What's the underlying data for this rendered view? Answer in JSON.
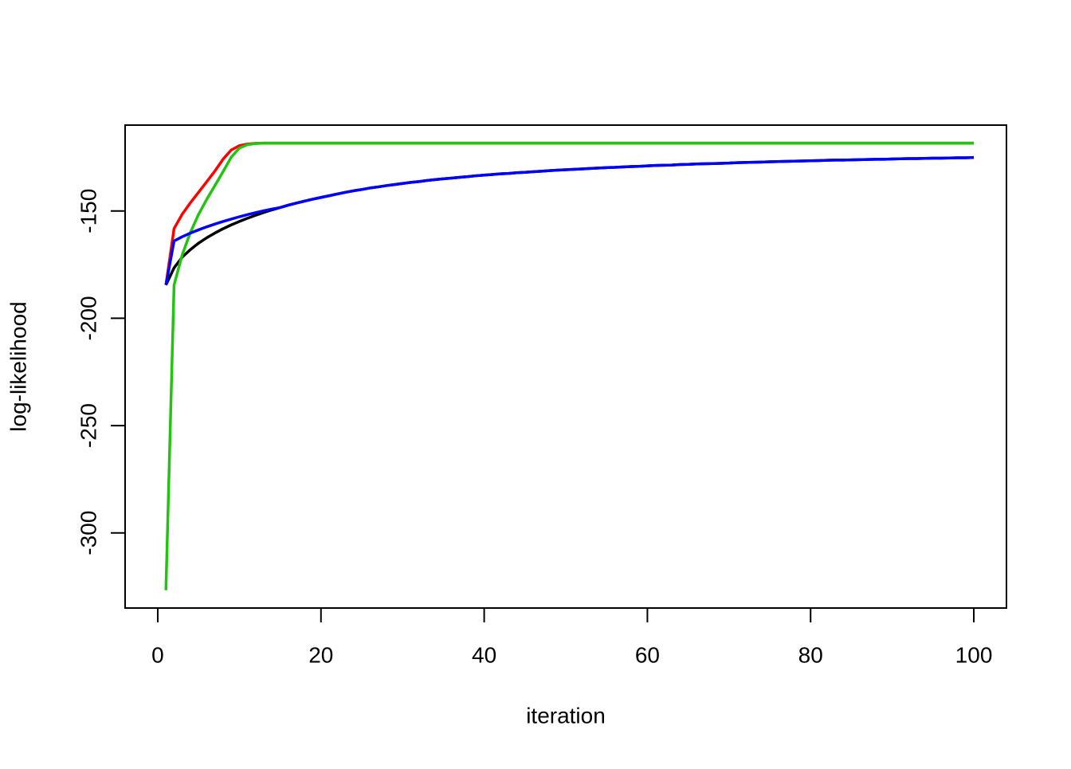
{
  "chart_data": {
    "type": "line",
    "x_label": "iteration",
    "y_label": "log-likelihood",
    "x": [
      1,
      2,
      3,
      4,
      5,
      6,
      7,
      8,
      9,
      10,
      11,
      12,
      13,
      14,
      15,
      16,
      17,
      18,
      19,
      20,
      21,
      22,
      23,
      24,
      25,
      26,
      27,
      28,
      29,
      30,
      31,
      32,
      33,
      34,
      35,
      36,
      37,
      38,
      39,
      40,
      41,
      42,
      43,
      44,
      45,
      46,
      47,
      48,
      49,
      50,
      51,
      52,
      53,
      54,
      55,
      56,
      57,
      58,
      59,
      60,
      61,
      62,
      63,
      64,
      65,
      66,
      67,
      68,
      69,
      70,
      71,
      72,
      73,
      74,
      75,
      76,
      77,
      78,
      79,
      80,
      81,
      82,
      83,
      84,
      85,
      86,
      87,
      88,
      89,
      90,
      91,
      92,
      93,
      94,
      95,
      96,
      97,
      98,
      99,
      100
    ],
    "series": [
      {
        "color": "#000000",
        "values": [
          -184.5,
          -176.5,
          -171.5,
          -168.0,
          -165.0,
          -162.5,
          -160.3,
          -158.3,
          -156.5,
          -154.9,
          -153.4,
          -152.0,
          -150.7,
          -149.5,
          -148.4,
          -147.3,
          -146.3,
          -145.4,
          -144.5,
          -143.7,
          -142.9,
          -142.1,
          -141.3,
          -140.6,
          -140.0,
          -139.3,
          -138.8,
          -138.2,
          -137.7,
          -137.2,
          -136.7,
          -136.3,
          -135.8,
          -135.4,
          -135.0,
          -134.7,
          -134.3,
          -134.0,
          -133.6,
          -133.3,
          -133.0,
          -132.7,
          -132.5,
          -132.2,
          -132.0,
          -131.7,
          -131.5,
          -131.2,
          -131.0,
          -130.8,
          -130.6,
          -130.4,
          -130.2,
          -130.0,
          -129.8,
          -129.7,
          -129.5,
          -129.3,
          -129.2,
          -129.0,
          -128.8,
          -128.7,
          -128.6,
          -128.4,
          -128.3,
          -128.1,
          -128.0,
          -127.9,
          -127.8,
          -127.7,
          -127.5,
          -127.4,
          -127.3,
          -127.2,
          -127.1,
          -127.0,
          -126.9,
          -126.8,
          -126.7,
          -126.6,
          -126.5,
          -126.4,
          -126.3,
          -126.3,
          -126.2,
          -126.1,
          -126.0,
          -125.9,
          -125.9,
          -125.8,
          -125.7,
          -125.6,
          -125.6,
          -125.5,
          -125.4,
          -125.4,
          -125.3,
          -125.2,
          -125.2,
          -125.1
        ]
      },
      {
        "color": "#ff0000",
        "values": [
          -184.5,
          -158.2,
          -151.5,
          -146.2,
          -141.3,
          -136.4,
          -131.4,
          -125.9,
          -121.6,
          -119.6,
          -118.8,
          -118.5,
          -118.4,
          -118.4,
          -118.4,
          -118.4,
          -118.4,
          -118.4,
          -118.4,
          -118.4,
          -118.4,
          -118.4,
          -118.4,
          -118.4,
          -118.4,
          -118.4,
          -118.4,
          -118.4,
          -118.4,
          -118.4,
          -118.4,
          -118.4,
          -118.4,
          -118.4,
          -118.4,
          -118.4,
          -118.4,
          -118.4,
          -118.4,
          -118.4,
          -118.4,
          -118.4,
          -118.4,
          -118.4,
          -118.4,
          -118.4,
          -118.4,
          -118.4,
          -118.4,
          -118.4,
          -118.4,
          -118.4,
          -118.4,
          -118.4,
          -118.4,
          -118.4,
          -118.4,
          -118.4,
          -118.4,
          -118.4,
          -118.4,
          -118.4,
          -118.4,
          -118.4,
          -118.4,
          -118.4,
          -118.4,
          -118.4,
          -118.4,
          -118.4,
          -118.4,
          -118.4,
          -118.4,
          -118.4,
          -118.4,
          -118.4,
          -118.4,
          -118.4,
          -118.4,
          -118.4,
          -118.4,
          -118.4,
          -118.4,
          -118.4,
          -118.4,
          -118.4,
          -118.4,
          -118.4,
          -118.4,
          -118.4,
          -118.4,
          -118.4,
          -118.4,
          -118.4,
          -118.4,
          -118.4,
          -118.4,
          -118.4,
          -118.4,
          -118.4
        ]
      },
      {
        "color": "#22c411",
        "values": [
          -326.7,
          -184.5,
          -170.4,
          -160.0,
          -151.6,
          -144.6,
          -138.2,
          -131.7,
          -125.0,
          -120.7,
          -119.1,
          -118.6,
          -118.4,
          -118.4,
          -118.4,
          -118.4,
          -118.4,
          -118.4,
          -118.4,
          -118.4,
          -118.4,
          -118.4,
          -118.4,
          -118.4,
          -118.4,
          -118.4,
          -118.4,
          -118.4,
          -118.4,
          -118.4,
          -118.4,
          -118.4,
          -118.4,
          -118.4,
          -118.4,
          -118.4,
          -118.4,
          -118.4,
          -118.4,
          -118.4,
          -118.4,
          -118.4,
          -118.4,
          -118.4,
          -118.4,
          -118.4,
          -118.4,
          -118.4,
          -118.4,
          -118.4,
          -118.4,
          -118.4,
          -118.4,
          -118.4,
          -118.4,
          -118.4,
          -118.4,
          -118.4,
          -118.4,
          -118.4,
          -118.4,
          -118.4,
          -118.4,
          -118.4,
          -118.4,
          -118.4,
          -118.4,
          -118.4,
          -118.4,
          -118.4,
          -118.4,
          -118.4,
          -118.4,
          -118.4,
          -118.4,
          -118.4,
          -118.4,
          -118.4,
          -118.4,
          -118.4,
          -118.4,
          -118.4,
          -118.4,
          -118.4,
          -118.4,
          -118.4,
          -118.4,
          -118.4,
          -118.4,
          -118.4,
          -118.4,
          -118.4,
          -118.4,
          -118.4,
          -118.4,
          -118.4,
          -118.4,
          -118.4,
          -118.4,
          -118.4
        ]
      },
      {
        "color": "#0000ff",
        "values": [
          -184.5,
          -164.0,
          -162.0,
          -160.3,
          -158.8,
          -157.4,
          -156.1,
          -154.9,
          -153.8,
          -152.7,
          -151.7,
          -150.8,
          -149.9,
          -149.1,
          -148.4,
          -147.3,
          -146.3,
          -145.4,
          -144.5,
          -143.7,
          -142.9,
          -142.1,
          -141.3,
          -140.6,
          -140.0,
          -139.3,
          -138.8,
          -138.2,
          -137.7,
          -137.2,
          -136.7,
          -136.3,
          -135.8,
          -135.4,
          -135.0,
          -134.7,
          -134.3,
          -134.0,
          -133.6,
          -133.3,
          -133.0,
          -132.7,
          -132.5,
          -132.2,
          -132.0,
          -131.7,
          -131.5,
          -131.2,
          -131.0,
          -130.8,
          -130.6,
          -130.4,
          -130.2,
          -130.0,
          -129.8,
          -129.7,
          -129.5,
          -129.3,
          -129.2,
          -129.0,
          -128.8,
          -128.7,
          -128.6,
          -128.4,
          -128.3,
          -128.1,
          -128.0,
          -127.9,
          -127.8,
          -127.7,
          -127.5,
          -127.4,
          -127.3,
          -127.2,
          -127.1,
          -127.0,
          -126.9,
          -126.8,
          -126.7,
          -126.6,
          -126.5,
          -126.4,
          -126.3,
          -126.3,
          -126.2,
          -126.1,
          -126.0,
          -125.9,
          -125.9,
          -125.8,
          -125.7,
          -125.6,
          -125.6,
          -125.5,
          -125.4,
          -125.4,
          -125.3,
          -125.2,
          -125.2,
          -125.1
        ]
      }
    ],
    "xlim": [
      -4,
      104
    ],
    "ylim": [
      -335,
      -110
    ],
    "xticks": [
      0,
      20,
      40,
      60,
      80,
      100
    ],
    "yticks": [
      -300,
      -250,
      -200,
      -150
    ],
    "grid": false
  }
}
